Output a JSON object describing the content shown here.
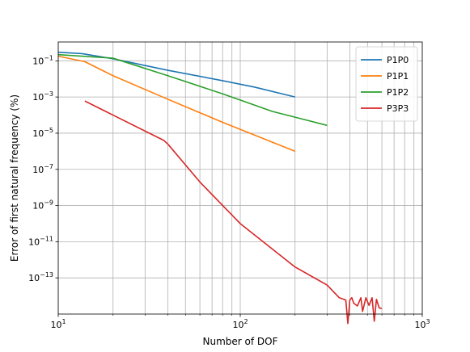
{
  "chart_data": {
    "type": "line",
    "xlabel": "Number of DOF",
    "ylabel": "Error of first natural frequency (%)",
    "xscale": "log",
    "yscale": "log",
    "xlim": [
      10,
      1000
    ],
    "ylim": [
      1e-15,
      1.1
    ],
    "grid": true,
    "legend": "upper-right",
    "x_ticks": [
      {
        "base": "10",
        "exp": "1",
        "value": 10
      },
      {
        "base": "10",
        "exp": "2",
        "value": 100
      },
      {
        "base": "10",
        "exp": "3",
        "value": 1000
      }
    ],
    "y_ticks": [
      {
        "base": "10",
        "exp": "−1",
        "value": 0.1
      },
      {
        "base": "10",
        "exp": "−3",
        "value": 0.001
      },
      {
        "base": "10",
        "exp": "−5",
        "value": 1e-05
      },
      {
        "base": "10",
        "exp": "−7",
        "value": 1e-07
      },
      {
        "base": "10",
        "exp": "−9",
        "value": 1e-09
      },
      {
        "base": "10",
        "exp": "−11",
        "value": 1e-11
      },
      {
        "base": "10",
        "exp": "−13",
        "value": 1e-13
      }
    ],
    "series": [
      {
        "name": "P1P0",
        "color": "#1f77b4",
        "x": [
          10,
          13.5,
          20,
          40,
          80,
          120,
          200
        ],
        "y": [
          0.3,
          0.25,
          0.13,
          0.03,
          0.008,
          0.0035,
          0.001
        ]
      },
      {
        "name": "P1P1",
        "color": "#ff7f0e",
        "x": [
          10,
          14,
          20,
          40,
          80,
          200
        ],
        "y": [
          0.18,
          0.09,
          0.015,
          0.00075,
          4e-05,
          1e-06
        ]
      },
      {
        "name": "P1P2",
        "color": "#2ca02c",
        "x": [
          10,
          20,
          40,
          80,
          150,
          300
        ],
        "y": [
          0.22,
          0.14,
          0.015,
          0.0015,
          0.00016,
          2.7e-05
        ]
      },
      {
        "name": "P3P3",
        "color": "#d62728",
        "x": [
          14,
          20,
          38,
          40,
          60,
          100,
          200,
          300,
          350,
          380,
          390,
          400,
          410,
          420,
          440,
          460,
          470,
          490,
          510,
          530,
          545,
          560,
          580,
          600
        ],
        "y": [
          0.0006,
          0.0001,
          4e-06,
          2.5e-06,
          2e-08,
          1e-10,
          4e-13,
          4e-14,
          8e-15,
          6e-15,
          3e-16,
          6e-15,
          8e-15,
          4e-15,
          2.8e-15,
          8e-15,
          1.4e-15,
          8e-15,
          3e-15,
          8e-15,
          4e-16,
          6.5e-15,
          2.2e-15,
          2e-15
        ]
      }
    ]
  }
}
